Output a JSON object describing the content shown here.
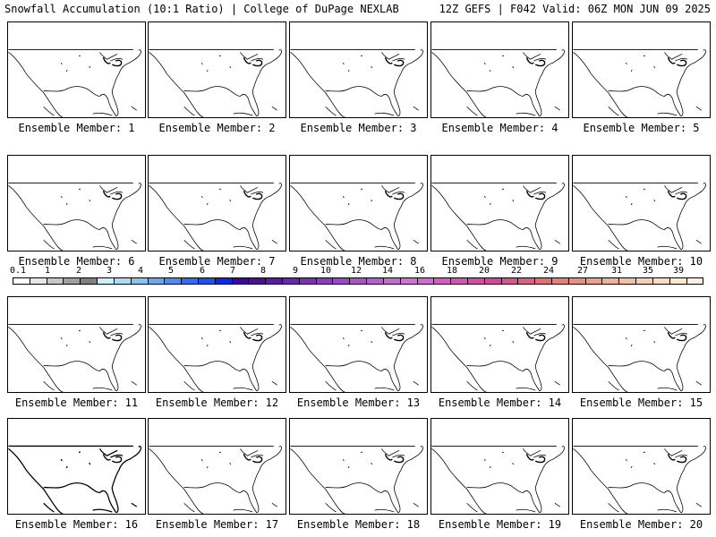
{
  "header": {
    "title_left": "Snowfall Accumulation (10:1 Ratio) | College of DuPage NEXLAB",
    "title_right": "12Z GEFS | F042 Valid: 06Z MON JUN 09 2025"
  },
  "panels": [
    {
      "label": "Ensemble Member: 1"
    },
    {
      "label": "Ensemble Member: 2"
    },
    {
      "label": "Ensemble Member: 3"
    },
    {
      "label": "Ensemble Member: 4"
    },
    {
      "label": "Ensemble Member: 5"
    },
    {
      "label": "Ensemble Member: 6"
    },
    {
      "label": "Ensemble Member: 7"
    },
    {
      "label": "Ensemble Member: 8"
    },
    {
      "label": "Ensemble Member: 9"
    },
    {
      "label": "Ensemble Member: 10"
    },
    {
      "label": "Ensemble Member: 11"
    },
    {
      "label": "Ensemble Member: 12"
    },
    {
      "label": "Ensemble Member: 13"
    },
    {
      "label": "Ensemble Member: 14"
    },
    {
      "label": "Ensemble Member: 15"
    },
    {
      "label": "Ensemble Member: 16"
    },
    {
      "label": "Ensemble Member: 17"
    },
    {
      "label": "Ensemble Member: 18"
    },
    {
      "label": "Ensemble Member: 19"
    },
    {
      "label": "Ensemble Member: 20"
    }
  ],
  "colorbar": {
    "tick_labels": [
      "0.1",
      "1",
      "2",
      "3",
      "4",
      "5",
      "6",
      "7",
      "8",
      "9",
      "10",
      "12",
      "14",
      "16",
      "18",
      "20",
      "22",
      "24",
      "27",
      "31",
      "35",
      "39"
    ],
    "colors": [
      "#ffffff",
      "#e6e6e6",
      "#c8c8c8",
      "#a0a0a0",
      "#808080",
      "#c8f0f8",
      "#a8dcf8",
      "#88c4f0",
      "#6aa8ec",
      "#4a8cf0",
      "#2e6cf4",
      "#1e50f0",
      "#0a28e8",
      "#3a0a9c",
      "#4a1090",
      "#5c1aa0",
      "#6c26ac",
      "#7c30b4",
      "#8c3cbc",
      "#9c48c4",
      "#a854c8",
      "#b85ed0",
      "#c66ad6",
      "#d070d8",
      "#d46ad0",
      "#d45ec4",
      "#d454b4",
      "#d44ca4",
      "#d44898",
      "#d8528c",
      "#dc6080",
      "#e07078",
      "#e48078",
      "#e89080",
      "#eca088",
      "#f0b094",
      "#f4c0a4",
      "#f6d0b4",
      "#f8dcc4",
      "#fae8d4",
      "#fcf0e4"
    ]
  }
}
